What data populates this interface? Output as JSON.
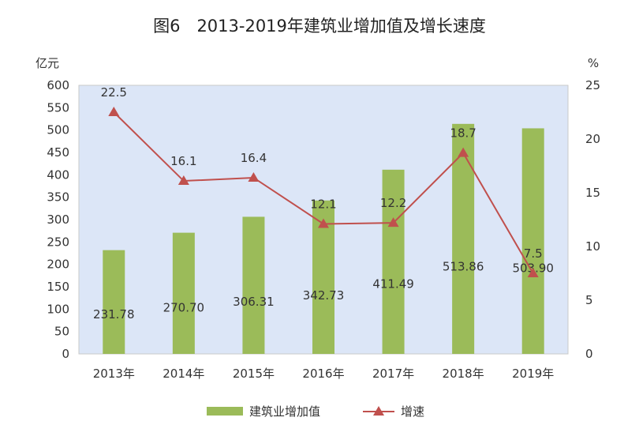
{
  "chart_data": {
    "type": "bar+line",
    "title": "图6　2013-2019年建筑业增加值及增长速度",
    "ylabel_left": "亿元",
    "ylabel_right": "%",
    "categories": [
      "2013年",
      "2014年",
      "2015年",
      "2016年",
      "2017年",
      "2018年",
      "2019年"
    ],
    "ylim_left": [
      0,
      600
    ],
    "yticks_left": [
      "0",
      "50",
      "100",
      "150",
      "200",
      "250",
      "300",
      "350",
      "400",
      "450",
      "500",
      "550",
      "600"
    ],
    "ylim_right": [
      0,
      25
    ],
    "yticks_right": [
      "0",
      "5",
      "10",
      "15",
      "20",
      "25"
    ],
    "series": [
      {
        "name": "建筑业增加值",
        "type": "bar",
        "axis": "left",
        "values": [
          231.78,
          270.7,
          306.31,
          342.73,
          411.49,
          513.86,
          503.9
        ],
        "labels": [
          "231.78",
          "270.70",
          "306.31",
          "342.73",
          "411.49",
          "513.86",
          "503.90"
        ]
      },
      {
        "name": "增速",
        "type": "line",
        "axis": "right",
        "marker": "triangle",
        "values": [
          22.5,
          16.1,
          16.4,
          12.1,
          12.2,
          18.7,
          7.5
        ],
        "labels": [
          "22.5",
          "16.1",
          "16.4",
          "12.1",
          "12.2",
          "18.7",
          "7.5"
        ]
      }
    ],
    "colors": {
      "bar": "#9bbb59",
      "line": "#c0504d",
      "plot_bg": "#dce6f7",
      "plot_border": "#c9c9c9"
    },
    "legend_position": "bottom",
    "grid": false
  }
}
